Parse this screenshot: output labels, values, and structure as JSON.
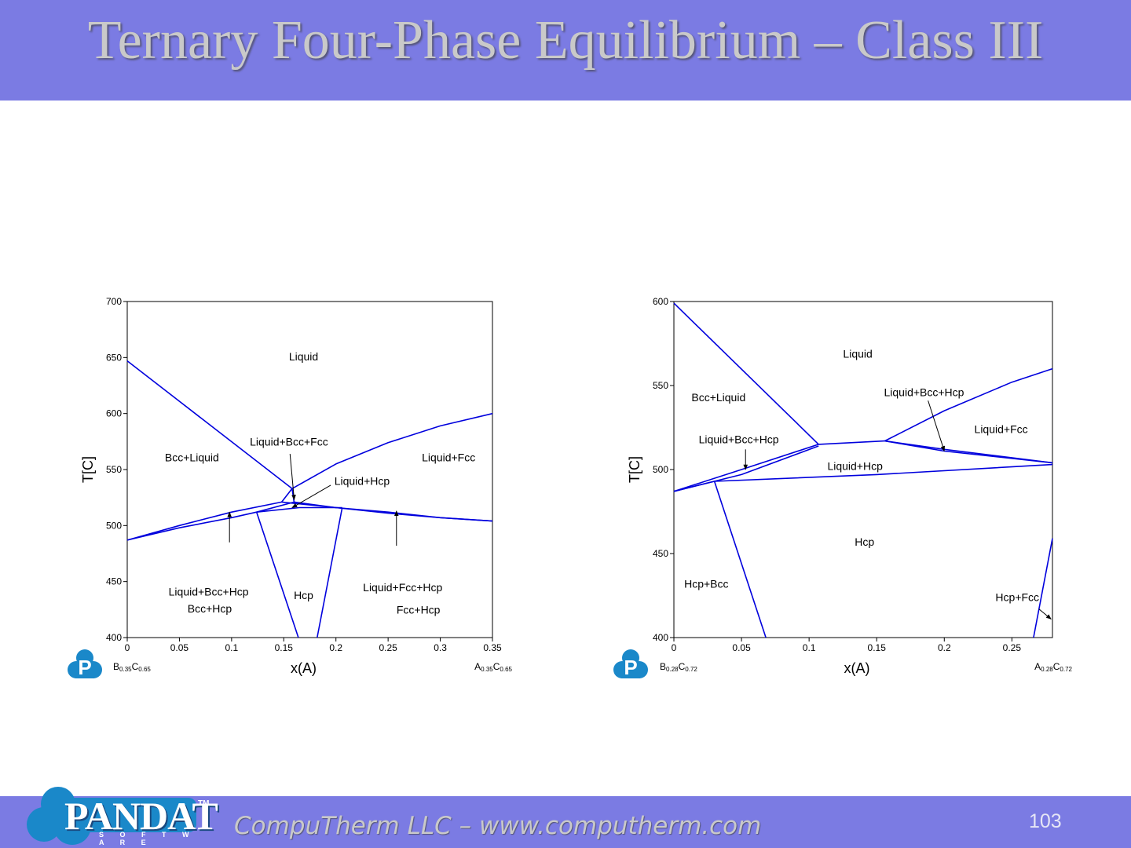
{
  "slide": {
    "title": "Ternary Four-Phase Equilibrium – Class III",
    "footer_text": "CompuTherm LLC – www.computherm.com",
    "page_number": "103",
    "logo": {
      "name": "PANDAT",
      "sub": "S O F T W A R E",
      "tm": "TM"
    },
    "colors": {
      "band": "#7b7be3",
      "line": "#0000dd"
    }
  },
  "chart_data": [
    {
      "type": "line",
      "xlabel": "x(A)",
      "ylabel": "T[C]",
      "xlim": [
        0,
        0.35
      ],
      "ylim": [
        400,
        700
      ],
      "xticks": [
        "0",
        "0.05",
        "0.1",
        "0.15",
        "0.2",
        "0.25",
        "0.3",
        "0.35"
      ],
      "yticks": [
        "400",
        "450",
        "500",
        "550",
        "600",
        "650",
        "700"
      ],
      "left_composition": {
        "b": "B",
        "b_sub": "0.35",
        "c": "C",
        "c_sub": "0.65"
      },
      "right_composition": {
        "b": "A",
        "b_sub": "0.35",
        "c": "C",
        "c_sub": "0.65"
      },
      "region_labels": [
        {
          "text": "Liquid",
          "x": 0.169,
          "y": 651
        },
        {
          "text": "Bcc+Liquid",
          "x": 0.062,
          "y": 561
        },
        {
          "text": "Liquid+Fcc",
          "x": 0.308,
          "y": 561
        },
        {
          "text": "Liquid+Bcc+Fcc",
          "x": 0.155,
          "y": 575
        },
        {
          "text": "Liquid+Hcp",
          "x": 0.225,
          "y": 540
        },
        {
          "text": "Liquid+Bcc+Hcp",
          "x": 0.078,
          "y": 441
        },
        {
          "text": "Hcp",
          "x": 0.169,
          "y": 438
        },
        {
          "text": "Liquid+Fcc+Hcp",
          "x": 0.264,
          "y": 445
        },
        {
          "text": "Bcc+Hcp",
          "x": 0.079,
          "y": 426
        },
        {
          "text": "Fcc+Hcp",
          "x": 0.279,
          "y": 425
        }
      ],
      "arrows": [
        {
          "from": [
            0.156,
            564
          ],
          "to": [
            0.16,
            523
          ]
        },
        {
          "from": [
            0.195,
            536
          ],
          "to": [
            0.158,
            516
          ]
        },
        {
          "from": [
            0.098,
            485
          ],
          "to": [
            0.098,
            512
          ]
        },
        {
          "from": [
            0.258,
            482
          ],
          "to": [
            0.258,
            513
          ]
        }
      ],
      "boundaries": [
        {
          "points": [
            [
              0,
              647
            ],
            [
              0.158,
              533
            ]
          ]
        },
        {
          "points": [
            [
              0.158,
              533
            ],
            [
              0.16,
              520
            ]
          ]
        },
        {
          "points": [
            [
              0.158,
              533
            ],
            [
              0.2,
              555
            ],
            [
              0.25,
              574
            ],
            [
              0.3,
              589
            ],
            [
              0.35,
              600
            ]
          ]
        },
        {
          "points": [
            [
              0,
              487
            ],
            [
              0.05,
              500
            ],
            [
              0.1,
              512
            ],
            [
              0.148,
              521
            ]
          ]
        },
        {
          "points": [
            [
              0,
              487
            ],
            [
              0.05,
              498
            ],
            [
              0.1,
              507
            ],
            [
              0.124,
              512
            ]
          ]
        },
        {
          "points": [
            [
              0.148,
              521
            ],
            [
              0.158,
              533
            ]
          ]
        },
        {
          "points": [
            [
              0.124,
              512
            ],
            [
              0.16,
              521
            ]
          ]
        },
        {
          "points": [
            [
              0.148,
              521
            ],
            [
              0.2,
              516
            ],
            [
              0.25,
              511
            ],
            [
              0.3,
              507
            ],
            [
              0.35,
              504
            ]
          ]
        },
        {
          "points": [
            [
              0.16,
              521
            ],
            [
              0.2,
              516
            ],
            [
              0.25,
              512
            ],
            [
              0.3,
              507
            ],
            [
              0.35,
              504
            ]
          ]
        },
        {
          "points": [
            [
              0.124,
              512
            ],
            [
              0.165,
              516
            ],
            [
              0.206,
              516
            ]
          ]
        },
        {
          "points": [
            [
              0.124,
              512
            ],
            [
              0.164,
              400
            ]
          ]
        },
        {
          "points": [
            [
              0.206,
              516
            ],
            [
              0.182,
              400
            ]
          ]
        }
      ]
    },
    {
      "type": "line",
      "xlabel": "x(A)",
      "ylabel": "T[C]",
      "xlim": [
        0,
        0.28
      ],
      "ylim": [
        400,
        600
      ],
      "xticks": [
        "0",
        "0.05",
        "0.1",
        "0.15",
        "0.2",
        "0.25"
      ],
      "yticks": [
        "400",
        "450",
        "500",
        "550",
        "600"
      ],
      "left_composition": {
        "b": "B",
        "b_sub": "0.28",
        "c": "C",
        "c_sub": "0.72"
      },
      "right_composition": {
        "b": "A",
        "b_sub": "0.28",
        "c": "C",
        "c_sub": "0.72"
      },
      "region_labels": [
        {
          "text": "Liquid",
          "x": 0.136,
          "y": 569
        },
        {
          "text": "Bcc+Liquid",
          "x": 0.033,
          "y": 543
        },
        {
          "text": "Liquid+Bcc+Hcp",
          "x": 0.185,
          "y": 546
        },
        {
          "text": "Liquid+Fcc",
          "x": 0.242,
          "y": 524
        },
        {
          "text": "Liquid+Bcc+Hcp",
          "x": 0.048,
          "y": 518
        },
        {
          "text": "Liquid+Hcp",
          "x": 0.134,
          "y": 502
        },
        {
          "text": "Hcp",
          "x": 0.141,
          "y": 457
        },
        {
          "text": "Hcp+Bcc",
          "x": 0.024,
          "y": 432
        },
        {
          "text": "Hcp+Fcc",
          "x": 0.254,
          "y": 424
        }
      ],
      "arrows": [
        {
          "from": [
            0.188,
            541
          ],
          "to": [
            0.2,
            511
          ]
        },
        {
          "from": [
            0.053,
            512
          ],
          "to": [
            0.053,
            500
          ]
        },
        {
          "from": [
            0.27,
            417
          ],
          "to": [
            0.279,
            411
          ]
        }
      ],
      "boundaries": [
        {
          "points": [
            [
              0,
              599
            ],
            [
              0.107,
              515
            ]
          ]
        },
        {
          "points": [
            [
              0,
              487
            ],
            [
              0.05,
              500
            ],
            [
              0.107,
              515
            ]
          ]
        },
        {
          "points": [
            [
              0,
              487
            ],
            [
              0.05,
              497
            ],
            [
              0.107,
              514
            ]
          ]
        },
        {
          "points": [
            [
              0.107,
              515
            ],
            [
              0.156,
              517
            ]
          ]
        },
        {
          "points": [
            [
              0.156,
              517
            ],
            [
              0.2,
              535
            ],
            [
              0.25,
              552
            ],
            [
              0.28,
              560
            ]
          ]
        },
        {
          "points": [
            [
              0.156,
              517
            ],
            [
              0.2,
              512
            ],
            [
              0.28,
              504
            ]
          ]
        },
        {
          "points": [
            [
              0.156,
              517
            ],
            [
              0.2,
              511
            ],
            [
              0.28,
              504
            ]
          ]
        },
        {
          "points": [
            [
              0,
              487
            ],
            [
              0.03,
              493
            ]
          ]
        },
        {
          "points": [
            [
              0.03,
              493
            ],
            [
              0.15,
              497
            ],
            [
              0.28,
              503
            ]
          ]
        },
        {
          "points": [
            [
              0.03,
              493
            ],
            [
              0.068,
              400
            ]
          ]
        },
        {
          "points": [
            [
              0.28,
              459
            ],
            [
              0.266,
              400
            ]
          ]
        }
      ]
    }
  ]
}
